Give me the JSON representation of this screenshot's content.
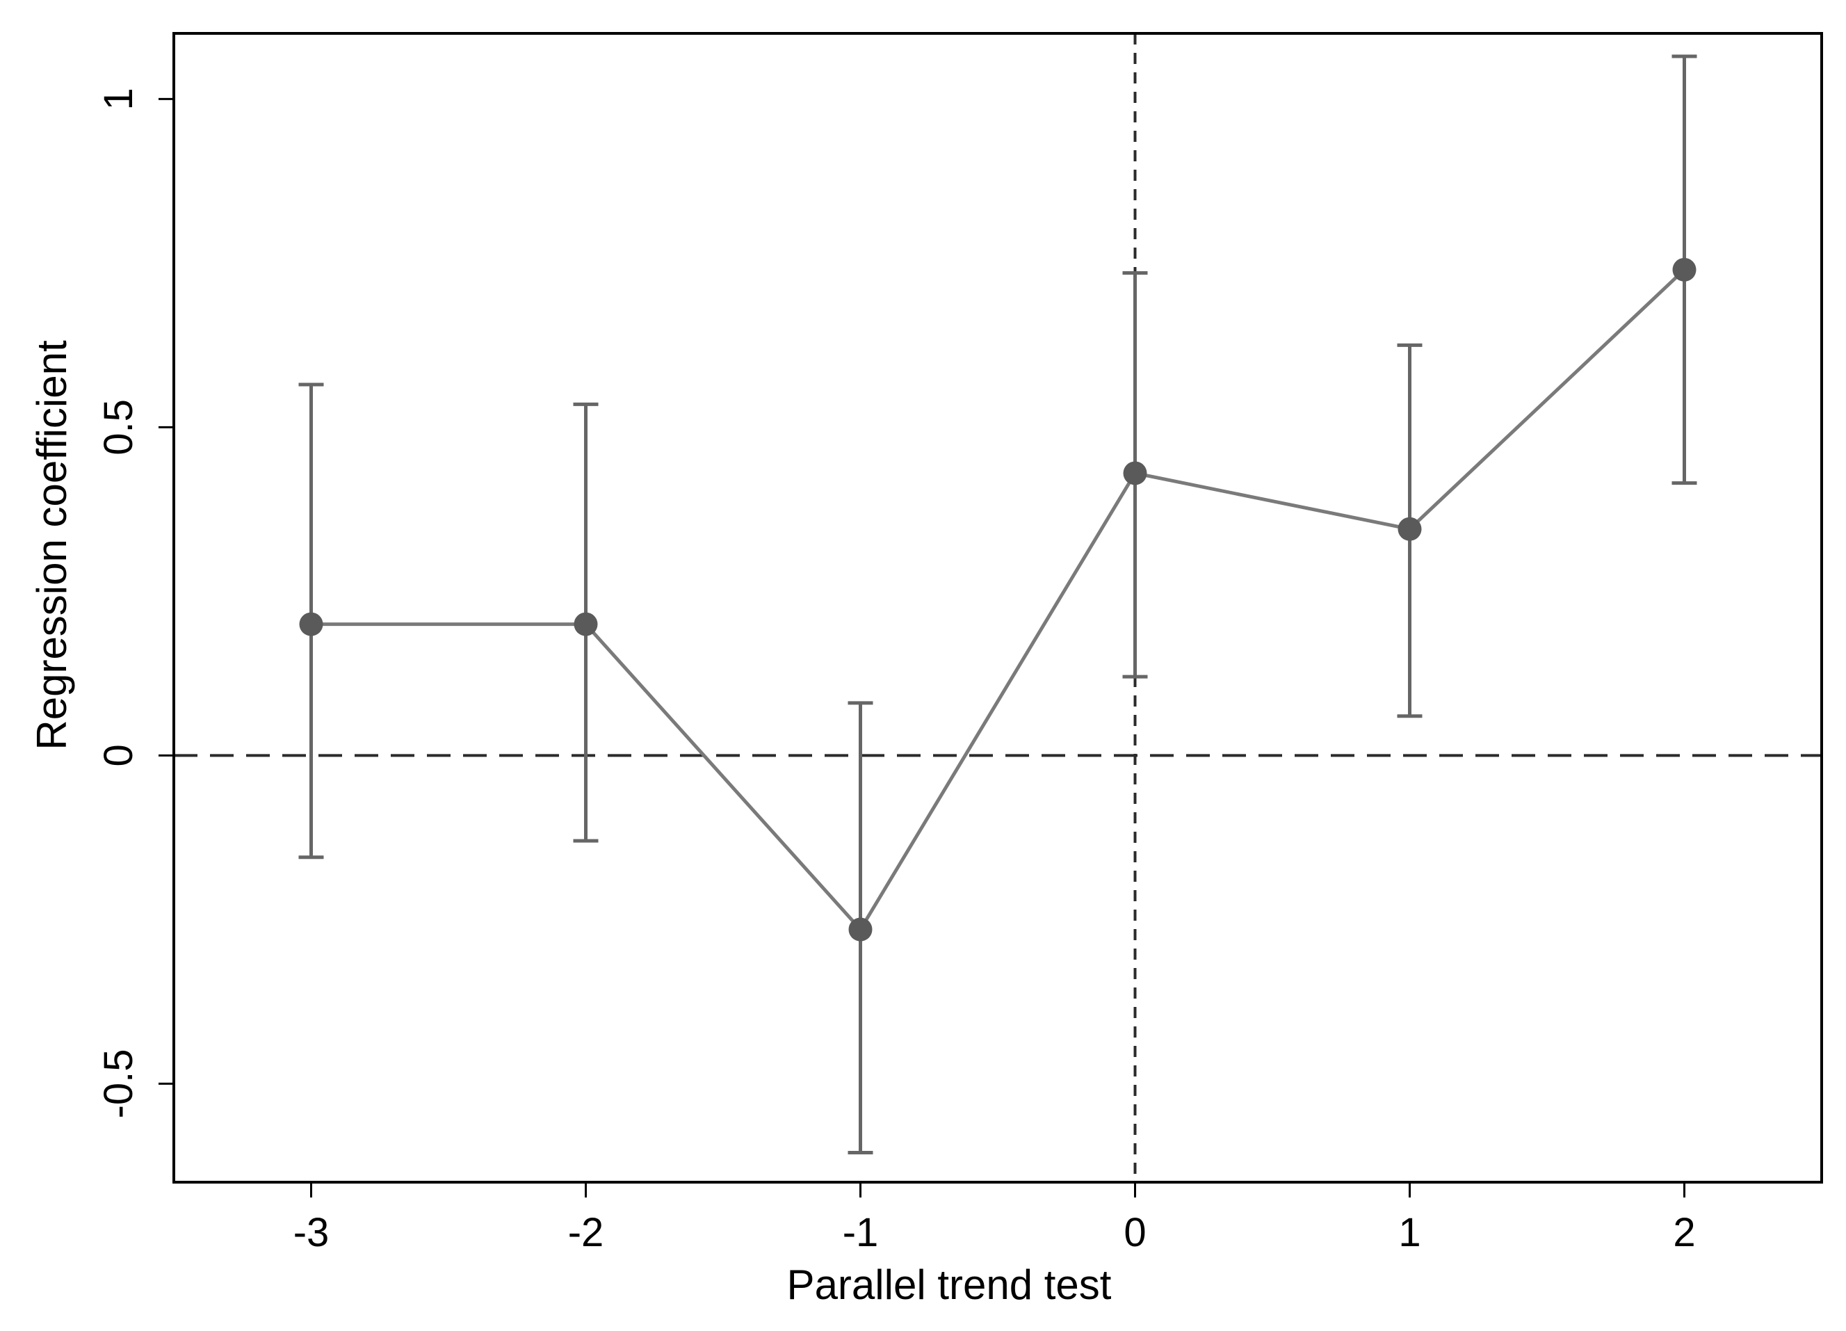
{
  "chart_data": {
    "type": "line",
    "title": "",
    "xlabel": "Parallel trend test",
    "ylabel": "Regression coefficient",
    "xlim": [
      -3.5,
      2.5
    ],
    "ylim": [
      -0.65,
      1.1
    ],
    "xticks": [
      -3,
      -2,
      -1,
      0,
      1,
      2
    ],
    "xtick_labels": [
      "-3",
      "-2",
      "-1",
      "0",
      "1",
      "2"
    ],
    "yticks": [
      -0.5,
      0,
      0.5,
      1
    ],
    "ytick_labels": [
      "-0.5",
      "0",
      "0.5",
      "1"
    ],
    "x": [
      -3,
      -2,
      -1,
      0,
      1,
      2
    ],
    "values": [
      0.2,
      0.2,
      -0.265,
      0.43,
      0.345,
      0.74
    ],
    "ci_lower": [
      -0.155,
      -0.13,
      -0.605,
      0.12,
      0.06,
      0.415
    ],
    "ci_upper": [
      0.565,
      0.535,
      0.08,
      0.735,
      0.625,
      1.065
    ],
    "reference_lines": {
      "horizontal": 0,
      "vertical": 0
    },
    "grid": false,
    "legend": "none",
    "colors": {
      "line": "#7a7a7a",
      "point": "#5a5a5a",
      "ci": "#666666",
      "reference": "#2b2b2b"
    }
  }
}
